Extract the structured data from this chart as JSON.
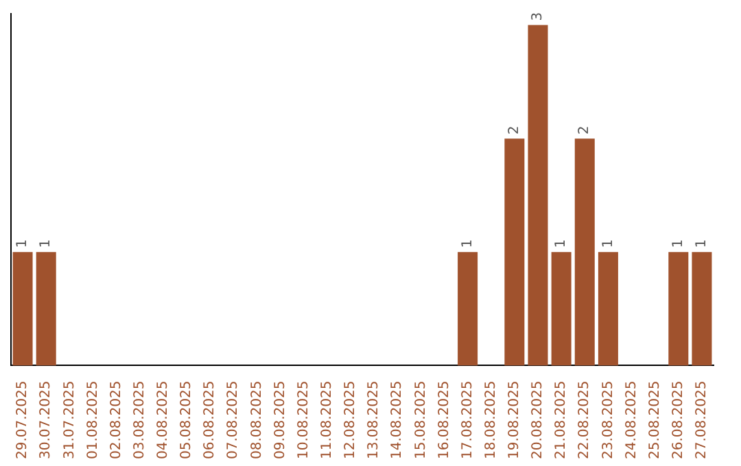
{
  "chart_data": {
    "type": "bar",
    "categories": [
      "29.07.2025",
      "30.07.2025",
      "31.07.2025",
      "01.08.2025",
      "02.08.2025",
      "03.08.2025",
      "04.08.2025",
      "05.08.2025",
      "06.08.2025",
      "07.08.2025",
      "08.08.2025",
      "09.08.2025",
      "10.08.2025",
      "11.08.2025",
      "12.08.2025",
      "13.08.2025",
      "14.08.2025",
      "15.08.2025",
      "16.08.2025",
      "17.08.2025",
      "18.08.2025",
      "19.08.2025",
      "20.08.2025",
      "21.08.2025",
      "22.08.2025",
      "23.08.2025",
      "24.08.2025",
      "25.08.2025",
      "26.08.2025",
      "27.08.2025"
    ],
    "values": [
      1,
      1,
      0,
      0,
      0,
      0,
      0,
      0,
      0,
      0,
      0,
      0,
      0,
      0,
      0,
      0,
      0,
      0,
      0,
      1,
      0,
      2,
      3,
      1,
      2,
      1,
      0,
      0,
      1,
      1
    ],
    "value_labels": [
      "1",
      "1",
      null,
      null,
      null,
      null,
      null,
      null,
      null,
      null,
      null,
      null,
      null,
      null,
      null,
      null,
      null,
      null,
      null,
      "1",
      null,
      "2",
      "3",
      "1",
      "2",
      "1",
      null,
      null,
      "1",
      "1"
    ],
    "color": "#a0522d",
    "ylim": [
      0,
      3.1
    ],
    "tick_labels": "x",
    "grid": false,
    "legend": false
  }
}
